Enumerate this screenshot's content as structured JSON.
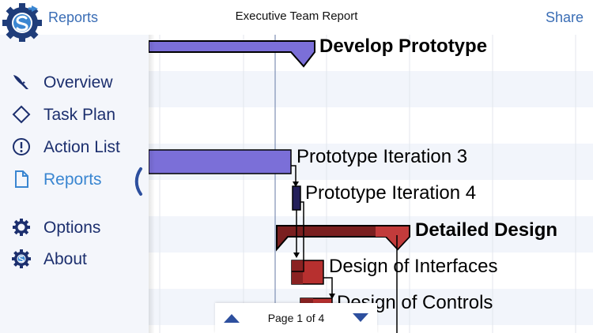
{
  "header": {
    "back_label": "Reports",
    "title": "Executive Team Report",
    "share_label": "Share"
  },
  "sidebar": {
    "items": [
      {
        "label": "Overview",
        "icon": "eagle-icon"
      },
      {
        "label": "Task Plan",
        "icon": "diamond-icon"
      },
      {
        "label": "Action List",
        "icon": "exclamation-circle-icon"
      },
      {
        "label": "Reports",
        "icon": "document-icon",
        "active": true
      },
      {
        "label": "Options",
        "icon": "gear-icon"
      },
      {
        "label": "About",
        "icon": "logo-gear-icon"
      }
    ]
  },
  "gantt": {
    "tasks": [
      {
        "label": "Develop Prototype",
        "type": "summary"
      },
      {
        "label": "Prototype Iteration 3",
        "type": "task"
      },
      {
        "label": "Prototype Iteration 4",
        "type": "task"
      },
      {
        "label": "Detailed Design",
        "type": "summary"
      },
      {
        "label": "Design of Interfaces",
        "type": "task"
      },
      {
        "label": "Design of Controls",
        "type": "task"
      }
    ],
    "colors": {
      "prototype_bar": "#7b6fd8",
      "iteration4_bar": "#24205a",
      "design_summary_dark": "#7a1f1f",
      "design_summary_light": "#c23b3b",
      "design_task": "#b7302f",
      "stripe": "#f2f5fb"
    }
  },
  "pager": {
    "text": "Page 1 of 4"
  }
}
